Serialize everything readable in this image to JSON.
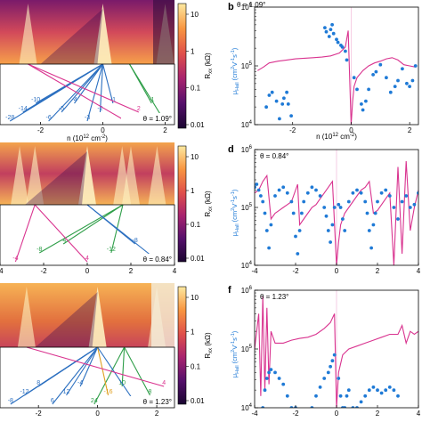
{
  "colorbar": {
    "label": "R",
    "label_sub": "xx",
    "unit": " (kΩ)",
    "ticks": [
      "10",
      "1",
      "0.1",
      "0.01"
    ],
    "colors": [
      "#1a0530",
      "#55106b",
      "#a8236e",
      "#e0504a",
      "#f89540",
      "#fde9a0"
    ]
  },
  "left_panels": [
    {
      "theta_label": "θ = 1.09°",
      "xticks": [
        "-2",
        "0",
        "2"
      ],
      "xlabel": "n (10",
      "xlabel_sup": "12",
      "xlabel_end": " cm",
      "xlabel_sup2": "-2",
      "xlabel_close": ")",
      "fan_labels": [
        {
          "text": "-28",
          "color": "#2b6fc0"
        },
        {
          "text": "-14",
          "color": "#2b6fc0"
        },
        {
          "text": "-10",
          "color": "#2b6fc0"
        },
        {
          "text": "-6",
          "color": "#2b6fc0"
        },
        {
          "text": "-5",
          "color": "#2b6fc0"
        },
        {
          "text": "-4",
          "color": "#2b6fc0"
        },
        {
          "text": "-3",
          "color": "#2b6fc0"
        },
        {
          "text": "-2",
          "color": "#2b6fc0"
        },
        {
          "text": "-1",
          "color": "#2b6fc0"
        },
        {
          "text": "4",
          "color": "#d9338f"
        },
        {
          "text": "2",
          "color": "#d9338f"
        },
        {
          "text": "-1",
          "color": "#2e9e48"
        },
        {
          "text": "1",
          "color": "#2e9e48"
        }
      ]
    },
    {
      "theta_label": "θ = 0.84°",
      "xticks": [
        "-4",
        "-2",
        "0",
        "2",
        "4"
      ],
      "fan_labels": [
        {
          "text": "-4",
          "color": "#d9338f"
        },
        {
          "text": "-8",
          "color": "#2e9e48"
        },
        {
          "text": "-4",
          "color": "#2e9e48"
        },
        {
          "text": "4",
          "color": "#d9338f"
        },
        {
          "text": "-12",
          "color": "#2e9e48"
        },
        {
          "text": "-8",
          "color": "#2b6fc0"
        },
        {
          "text": "12",
          "color": "#2b6fc0"
        }
      ]
    },
    {
      "theta_label": "θ = 1.23°",
      "xticks": [
        "-2",
        "0",
        "2"
      ],
      "fan_labels": [
        {
          "text": "-8",
          "color": "#2b6fc0"
        },
        {
          "text": "-12",
          "color": "#2b6fc0"
        },
        {
          "text": "8",
          "color": "#2b6fc0"
        },
        {
          "text": "6",
          "color": "#2b6fc0"
        },
        {
          "text": "12",
          "color": "#2b6fc0"
        },
        {
          "text": "-4",
          "color": "#2b6fc0"
        },
        {
          "text": "24",
          "color": "#2e9e48"
        },
        {
          "text": "-16",
          "color": "#e0a020"
        },
        {
          "text": "10",
          "color": "#2e9e48"
        },
        {
          "text": "-12",
          "color": "#2b6fc0"
        },
        {
          "text": "8",
          "color": "#2e9e48"
        },
        {
          "text": "4",
          "color": "#d9338f"
        }
      ]
    }
  ],
  "chart_data": [
    {
      "type": "scatter",
      "panel": "b",
      "theta_label": "θ = 1.09°",
      "ylabel": "μHall (cm²V⁻¹s⁻¹)",
      "xticks": [
        "-2",
        "0",
        "2"
      ],
      "xlim": [
        -3.3,
        2.3
      ],
      "ylim_log": [
        4,
        6
      ],
      "yticks": [
        "10⁴",
        "10⁵",
        "10⁶"
      ],
      "xlabel": "n (10¹² cm⁻²)",
      "series": [
        {
          "style": "line",
          "color": "#d9338f",
          "x": [
            -3.2,
            -3.0,
            -2.8,
            -2.5,
            -2.2,
            -1.9,
            -1.6,
            -1.3,
            -1.0,
            -0.7,
            -0.4,
            -0.2,
            -0.1,
            0.0,
            0.05,
            0.1,
            0.2,
            0.4,
            0.6,
            0.8,
            1.0,
            1.2,
            1.4,
            1.6,
            1.8,
            2.0,
            2.2
          ],
          "y_log": [
            4.92,
            4.98,
            5.05,
            5.08,
            5.1,
            5.12,
            5.13,
            5.14,
            5.15,
            5.17,
            5.22,
            5.32,
            5.6,
            4.0,
            4.4,
            4.65,
            4.8,
            4.92,
            5.0,
            5.05,
            5.08,
            5.12,
            5.14,
            5.1,
            5.02,
            5.0,
            4.98
          ]
        },
        {
          "style": "points",
          "color": "#1f7ad6",
          "x": [
            -2.9,
            -2.8,
            -2.7,
            -2.55,
            -2.45,
            -2.35,
            -2.3,
            -2.2,
            -2.15,
            -2.05,
            -0.9,
            -0.85,
            -0.75,
            -0.7,
            -0.65,
            -0.6,
            -0.5,
            -0.45,
            -0.35,
            -0.3,
            -0.2,
            -0.15,
            0.1,
            0.2,
            0.35,
            0.4,
            0.5,
            0.6,
            0.75,
            0.85,
            1.0,
            1.2,
            1.35,
            1.5,
            1.6,
            1.75,
            1.9,
            2.0,
            2.1,
            2.2
          ],
          "y_log": [
            4.3,
            4.5,
            4.55,
            4.4,
            4.1,
            4.35,
            4.45,
            4.55,
            4.35,
            4.15,
            5.65,
            5.58,
            5.5,
            5.62,
            5.7,
            5.55,
            5.45,
            5.4,
            5.35,
            5.32,
            5.25,
            5.1,
            4.8,
            4.6,
            4.35,
            4.25,
            4.4,
            4.6,
            4.85,
            4.9,
            5.02,
            4.8,
            4.55,
            4.65,
            4.75,
            4.95,
            4.7,
            4.65,
            4.75,
            5.0
          ]
        }
      ]
    },
    {
      "type": "scatter",
      "panel": "d",
      "theta_label": "θ = 0.84°",
      "ylabel": "μHall (cm²V⁻¹s⁻¹)",
      "xticks": [
        "-4",
        "-2",
        "0",
        "2",
        "4"
      ],
      "xlim": [
        -4,
        4
      ],
      "ylim_log": [
        4,
        6
      ],
      "xlabel": "n (10¹² cm⁻²)",
      "series": [
        {
          "style": "line",
          "color": "#d9338f",
          "x": [
            -4.0,
            -3.8,
            -3.6,
            -3.4,
            -3.2,
            -3.0,
            -2.8,
            -2.6,
            -2.4,
            -2.2,
            -2.0,
            -1.9,
            -1.8,
            -1.6,
            -1.4,
            -1.2,
            -1.0,
            -0.8,
            -0.6,
            -0.4,
            -0.2,
            0.0,
            0.1,
            0.2,
            0.4,
            0.6,
            0.8,
            1.0,
            1.2,
            1.4,
            1.6,
            1.8,
            2.0,
            2.2,
            2.4,
            2.6,
            2.8,
            3.0,
            3.2,
            3.4,
            3.6,
            3.8,
            4.0
          ],
          "y_log": [
            5.25,
            5.3,
            5.45,
            5.55,
            4.8,
            4.9,
            4.95,
            5.0,
            5.05,
            5.1,
            5.3,
            5.4,
            4.7,
            4.8,
            4.9,
            5.0,
            5.05,
            5.15,
            5.25,
            5.35,
            5.45,
            4.0,
            4.4,
            4.7,
            4.9,
            5.0,
            5.1,
            5.2,
            5.3,
            5.35,
            5.45,
            4.9,
            4.95,
            5.05,
            5.15,
            5.25,
            4.0,
            5.7,
            4.2,
            5.8,
            4.6,
            5.0,
            5.3
          ]
        },
        {
          "style": "points",
          "color": "#1f7ad6",
          "x": [
            -4.0,
            -3.9,
            -3.8,
            -3.7,
            -3.6,
            -3.5,
            -3.4,
            -3.3,
            -3.2,
            -3.0,
            -2.8,
            -2.6,
            -2.4,
            -2.2,
            -2.1,
            -2.0,
            -1.9,
            -1.8,
            -1.7,
            -1.6,
            -1.4,
            -1.2,
            -1.0,
            -0.8,
            -0.6,
            -0.5,
            -0.4,
            -0.3,
            -0.2,
            -0.1,
            0.1,
            0.2,
            0.3,
            0.4,
            0.6,
            0.8,
            1.0,
            1.2,
            1.4,
            1.5,
            1.6,
            1.7,
            1.8,
            1.9,
            2.0,
            2.2,
            2.4,
            2.6,
            2.8,
            3.0,
            3.2,
            3.4,
            3.6,
            3.8,
            4.0
          ],
          "y_log": [
            5.35,
            5.4,
            5.3,
            5.2,
            5.1,
            4.9,
            4.6,
            4.3,
            4.7,
            5.2,
            5.3,
            5.35,
            5.25,
            5.1,
            4.9,
            4.5,
            4.2,
            4.6,
            4.9,
            5.1,
            5.25,
            5.35,
            5.3,
            5.2,
            5.0,
            4.85,
            4.6,
            4.4,
            4.7,
            5.0,
            5.05,
            5.0,
            4.8,
            4.6,
            5.1,
            5.25,
            5.3,
            5.25,
            5.1,
            4.9,
            4.6,
            4.3,
            4.7,
            4.9,
            5.1,
            5.25,
            5.3,
            5.2,
            5.0,
            4.8,
            5.1,
            5.2,
            5.0,
            5.05,
            5.25
          ]
        }
      ]
    },
    {
      "type": "scatter",
      "panel": "f",
      "theta_label": "θ = 1.23°",
      "ylabel": "μHall (cm²V⁻¹s⁻¹)",
      "xticks": [
        "-4",
        "-2",
        "0",
        "2",
        "4"
      ],
      "xlim": [
        -4,
        4
      ],
      "ylim_log": [
        4,
        6
      ],
      "xlabel": "n (10¹² cm⁻²)",
      "series": [
        {
          "style": "line",
          "color": "#d9338f",
          "x": [
            -4.0,
            -3.8,
            -3.7,
            -3.6,
            -3.5,
            -3.4,
            -3.3,
            -3.2,
            -3.0,
            -2.6,
            -2.2,
            -1.8,
            -1.4,
            -1.0,
            -0.6,
            -0.3,
            -0.1,
            0.0,
            0.1,
            0.3,
            0.6,
            1.0,
            1.4,
            1.8,
            2.2,
            2.6,
            3.0,
            3.2,
            3.4,
            3.6,
            3.8,
            4.0
          ],
          "y_log": [
            5.0,
            5.6,
            4.2,
            5.9,
            4.3,
            5.7,
            4.4,
            5.3,
            5.1,
            5.1,
            5.15,
            5.18,
            5.2,
            5.25,
            5.35,
            5.45,
            5.6,
            4.0,
            4.6,
            4.9,
            5.0,
            5.05,
            5.1,
            5.15,
            5.2,
            5.25,
            5.25,
            5.4,
            5.1,
            5.3,
            5.25,
            5.3
          ]
        },
        {
          "style": "points",
          "color": "#1f7ad6",
          "x": [
            -3.6,
            -3.5,
            -3.4,
            -3.3,
            -3.2,
            -3.0,
            -2.8,
            -2.6,
            -2.4,
            -2.2,
            -2.0,
            -1.2,
            -1.0,
            -0.8,
            -0.6,
            -0.4,
            -0.3,
            -0.2,
            -0.1,
            0.1,
            0.2,
            0.3,
            0.4,
            0.5,
            0.6,
            0.8,
            1.0,
            1.2,
            1.4,
            1.6,
            1.8,
            2.0,
            2.2,
            2.4,
            2.6,
            2.8,
            3.0
          ],
          "y_log": [
            4.0,
            4.3,
            4.5,
            4.6,
            4.65,
            4.6,
            4.5,
            4.4,
            4.2,
            4.0,
            4.0,
            4.0,
            4.2,
            4.35,
            4.5,
            4.6,
            4.7,
            4.8,
            4.9,
            4.5,
            4.2,
            4.0,
            4.0,
            4.2,
            4.3,
            4.0,
            4.0,
            4.1,
            4.2,
            4.3,
            4.35,
            4.3,
            4.25,
            4.3,
            4.35,
            4.3,
            4.2
          ]
        }
      ]
    }
  ],
  "right_panels": [
    {
      "letter": "b",
      "theta_label": "θ = 1.09°",
      "xticks": [
        "-2",
        "0",
        "2"
      ]
    },
    {
      "letter": "d",
      "theta_label": "θ = 0.84°",
      "xticks": [
        "-4",
        "-2",
        "0",
        "2",
        "4"
      ]
    },
    {
      "letter": "f",
      "theta_label": "θ = 1.23°",
      "xticks": [
        "-4",
        "-2",
        "0",
        "2",
        "4"
      ]
    }
  ],
  "yaxis": {
    "mu_label": "μ",
    "mu_sub": "Hall",
    "mu_unit": " (cm",
    "mu_sup1": "2",
    "mu_v": "V",
    "mu_sup2": "-1",
    "mu_s": "s",
    "mu_sup3": "-1",
    "mu_close": ")",
    "ticks_base": "10",
    "ticks_exp": [
      "4",
      "5",
      "6"
    ]
  }
}
